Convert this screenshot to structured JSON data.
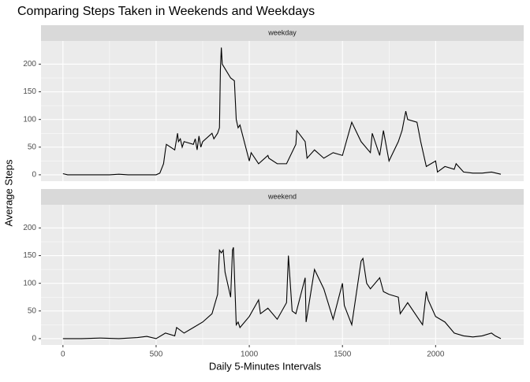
{
  "chart_data": {
    "type": "line",
    "title": "Comparing Steps Taken in Weekends and Weekdays",
    "x_label": "Daily 5-Minutes Intervals",
    "y_label": "Average Steps",
    "color": "#000000",
    "grid": true,
    "minor_grid": true,
    "xlim": [
      -117.75,
      2472.75
    ],
    "xticks": [
      0,
      500,
      1000,
      1500,
      2000
    ],
    "ylim": [
      -11.5,
      241.9
    ],
    "yticks": [
      0,
      50,
      100,
      150,
      200
    ],
    "facets": [
      {
        "label": "weekday",
        "x": [
          0,
          25,
          50,
          100,
          150,
          200,
          250,
          300,
          350,
          400,
          450,
          500,
          520,
          540,
          550,
          555,
          600,
          610,
          615,
          620,
          630,
          640,
          650,
          700,
          710,
          720,
          730,
          740,
          750,
          800,
          810,
          830,
          835,
          840,
          845,
          850,
          855,
          900,
          920,
          930,
          940,
          950,
          1000,
          1010,
          1050,
          1100,
          1105,
          1150,
          1200,
          1250,
          1255,
          1300,
          1310,
          1350,
          1400,
          1450,
          1500,
          1550,
          1600,
          1650,
          1660,
          1700,
          1720,
          1750,
          1800,
          1820,
          1840,
          1850,
          1900,
          1920,
          1950,
          2000,
          2010,
          2050,
          2100,
          2110,
          2150,
          2200,
          2250,
          2300,
          2350
        ],
        "values": [
          2,
          0,
          0,
          0,
          0,
          0,
          0,
          1,
          0,
          0,
          0,
          0,
          3,
          20,
          45,
          55,
          45,
          65,
          75,
          60,
          65,
          50,
          60,
          55,
          65,
          45,
          70,
          50,
          60,
          75,
          65,
          75,
          80,
          85,
          190,
          230,
          200,
          175,
          170,
          100,
          85,
          90,
          25,
          40,
          20,
          35,
          30,
          20,
          20,
          55,
          80,
          60,
          30,
          45,
          30,
          40,
          35,
          95,
          60,
          40,
          75,
          35,
          80,
          25,
          60,
          80,
          115,
          100,
          95,
          60,
          15,
          25,
          5,
          15,
          10,
          20,
          5,
          3,
          3,
          5,
          1
        ]
      },
      {
        "label": "weekend",
        "x": [
          0,
          100,
          200,
          300,
          400,
          450,
          500,
          550,
          600,
          610,
          650,
          700,
          750,
          800,
          830,
          840,
          850,
          860,
          870,
          880,
          900,
          910,
          915,
          920,
          930,
          940,
          950,
          1000,
          1050,
          1060,
          1100,
          1150,
          1200,
          1210,
          1220,
          1230,
          1250,
          1300,
          1305,
          1350,
          1400,
          1450,
          1500,
          1510,
          1550,
          1600,
          1610,
          1630,
          1650,
          1700,
          1720,
          1750,
          1800,
          1810,
          1850,
          1900,
          1930,
          1950,
          1960,
          2000,
          2050,
          2100,
          2150,
          2200,
          2250,
          2300,
          2320,
          2350
        ],
        "values": [
          0,
          0,
          1,
          0,
          2,
          4,
          0,
          10,
          5,
          20,
          10,
          20,
          30,
          45,
          80,
          160,
          155,
          160,
          120,
          105,
          75,
          160,
          165,
          120,
          25,
          30,
          20,
          40,
          70,
          45,
          55,
          35,
          65,
          150,
          100,
          50,
          45,
          110,
          30,
          125,
          90,
          35,
          100,
          60,
          25,
          140,
          145,
          100,
          90,
          110,
          85,
          80,
          75,
          45,
          65,
          40,
          25,
          85,
          70,
          40,
          30,
          10,
          5,
          3,
          5,
          10,
          5,
          0
        ]
      }
    ]
  }
}
